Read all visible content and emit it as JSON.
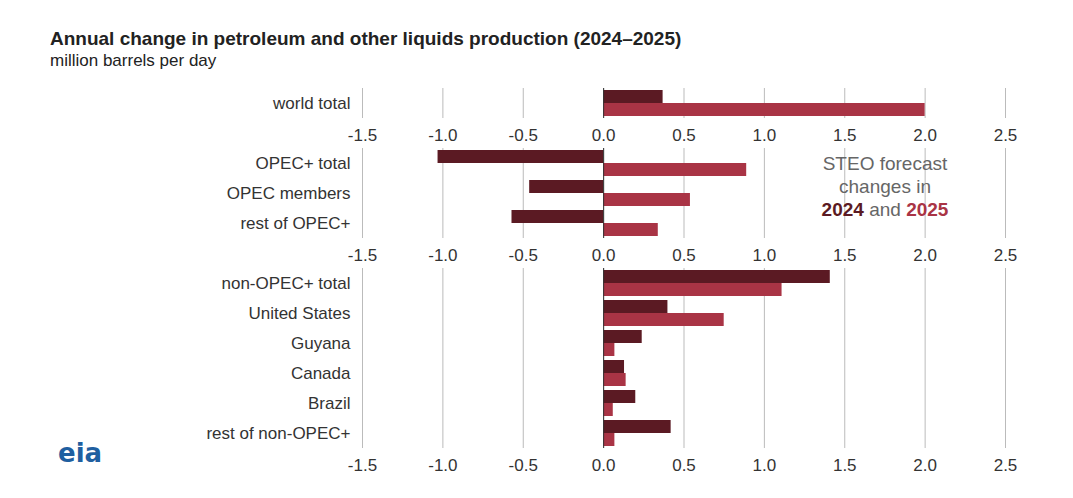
{
  "chart_data": {
    "type": "bar",
    "title": "Annual change in petroleum and other liquids production (2024–2025)",
    "subtitle": "million barrels per day",
    "orientation": "horizontal",
    "categories": [
      "world total",
      null,
      "OPEC+ total",
      "OPEC members",
      "rest of OPEC+",
      null,
      "non-OPEC+ total",
      "United States",
      "Guyana",
      "Canada",
      "Brazil",
      "rest of non-OPEC+"
    ],
    "series": [
      {
        "name": "2024",
        "color": "#5b1a23",
        "values": [
          0.37,
          null,
          -1.03,
          -0.46,
          -0.57,
          null,
          1.41,
          0.4,
          0.24,
          0.13,
          0.2,
          0.42
        ]
      },
      {
        "name": "2025",
        "color": "#a93445",
        "values": [
          2.0,
          null,
          0.89,
          0.54,
          0.34,
          null,
          1.11,
          0.75,
          0.07,
          0.14,
          0.06,
          0.07
        ]
      }
    ],
    "xlim": [
      -1.5,
      2.5
    ],
    "xticks": [
      -1.5,
      {
        "value": -1,
        "label": "-1.0"
      },
      -0.5,
      {
        "value": 0,
        "label": "0.0"
      },
      0.5,
      {
        "value": 1,
        "label": "1.0"
      },
      1.5,
      {
        "value": 2,
        "label": "2.0"
      },
      2.5
    ],
    "grid": true,
    "legend": "right",
    "annotations": [
      "STEO forecast",
      "changes in",
      "and"
    ],
    "logo_text": "eia"
  }
}
